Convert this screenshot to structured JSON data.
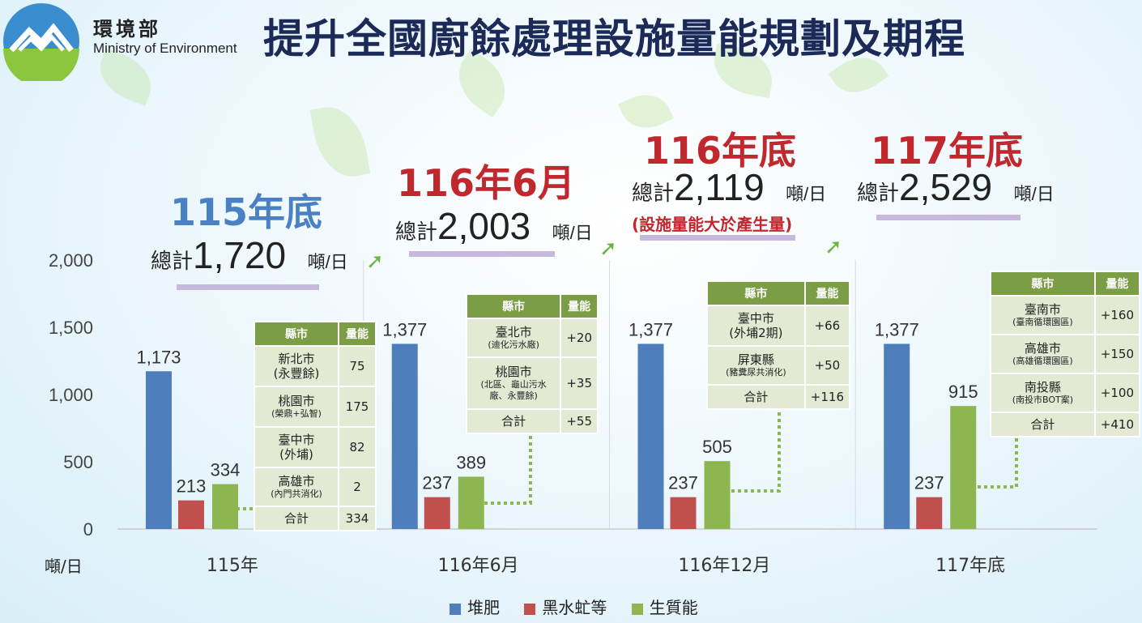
{
  "header": {
    "org_name": "環境部",
    "org_name_en": "Ministry of Environment",
    "title": "提升全國廚餘處理設施量能規劃及期程"
  },
  "periods": [
    {
      "label": "115年底",
      "total_word": "總計",
      "total": "1,720",
      "unit": "噸/日",
      "color": "#4a81c4",
      "note": ""
    },
    {
      "label": "116年6月",
      "total_word": "總計",
      "total": "2,003",
      "unit": "噸/日",
      "color": "#c0282d",
      "note": ""
    },
    {
      "label": "116年底",
      "total_word": "總計",
      "total": "2,119",
      "unit": "噸/日",
      "color": "#c0282d",
      "note": "(設施量能大於產生量)"
    },
    {
      "label": "117年底",
      "total_word": "總計",
      "total": "2,529",
      "unit": "噸/日",
      "color": "#c0282d",
      "note": ""
    }
  ],
  "tables": [
    {
      "headers": [
        "縣市",
        "量能"
      ],
      "rows": [
        {
          "city": "新北市",
          "sub": "(永豐餘)",
          "value": "75"
        },
        {
          "city": "桃園市",
          "sub": "(榮鼎+弘智)",
          "value": "175"
        },
        {
          "city": "臺中市",
          "sub": "(外埔)",
          "value": "82"
        },
        {
          "city": "高雄市",
          "sub": "(內門共消化)",
          "value": "2"
        },
        {
          "city": "合計",
          "sub": "",
          "value": "334"
        }
      ]
    },
    {
      "headers": [
        "縣市",
        "量能"
      ],
      "rows": [
        {
          "city": "臺北市",
          "sub": "(迪化污水廠)",
          "value": "+20"
        },
        {
          "city": "桃園市",
          "sub": "(北區、龜山污水廠、永豐餘)",
          "value": "+35"
        },
        {
          "city": "合計",
          "sub": "",
          "value": "+55"
        }
      ]
    },
    {
      "headers": [
        "縣市",
        "量能"
      ],
      "rows": [
        {
          "city": "臺中市",
          "sub": "(外埔2期)",
          "value": "+66"
        },
        {
          "city": "屏東縣",
          "sub": "(豬糞尿共消化)",
          "value": "+50"
        },
        {
          "city": "合計",
          "sub": "",
          "value": "+116"
        }
      ]
    },
    {
      "headers": [
        "縣市",
        "量能"
      ],
      "rows": [
        {
          "city": "臺南市",
          "sub": "(臺南循環園區)",
          "value": "+160"
        },
        {
          "city": "高雄市",
          "sub": "(高雄循環園區)",
          "value": "+150"
        },
        {
          "city": "南投縣",
          "sub": "(南投市BOT案)",
          "value": "+100"
        },
        {
          "city": "合計",
          "sub": "",
          "value": "+410"
        }
      ]
    }
  ],
  "chart_data": {
    "type": "bar",
    "categories": [
      "115年",
      "116年6月",
      "116年12月",
      "117年底"
    ],
    "series": [
      {
        "name": "堆肥",
        "color": "#4f7ebd",
        "values": [
          1173,
          1377,
          1377,
          1377
        ]
      },
      {
        "name": "黑水虻等",
        "color": "#c0504d",
        "values": [
          213,
          237,
          237,
          237
        ]
      },
      {
        "name": "生質能",
        "color": "#8db550",
        "values": [
          334,
          389,
          505,
          915
        ]
      }
    ],
    "data_labels": [
      [
        "1,173",
        "1,377",
        "1,377",
        "1,377"
      ],
      [
        "213",
        "237",
        "237",
        "237"
      ],
      [
        "334",
        "389",
        "505",
        "915"
      ]
    ],
    "ylabel": "噸/日",
    "ylim": [
      0,
      2000
    ],
    "yticks": [
      0,
      500,
      1000,
      1500,
      2000
    ],
    "ytick_labels": [
      "0",
      "500",
      "1,000",
      "1,500",
      "2,000"
    ],
    "legend": "bottom",
    "grid": false
  }
}
